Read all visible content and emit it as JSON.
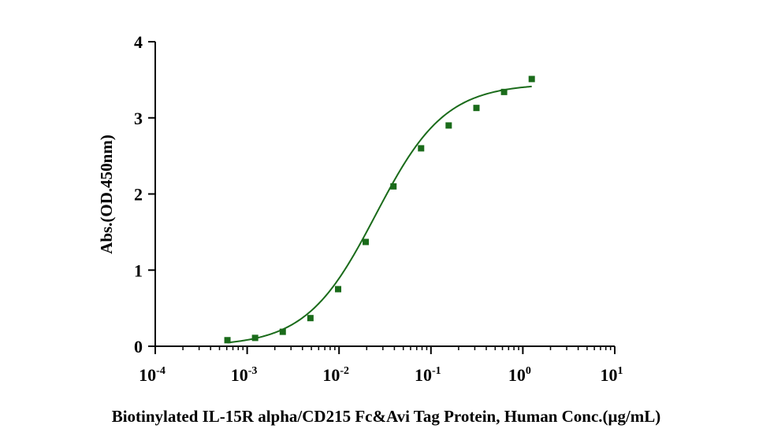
{
  "chart_data": {
    "type": "scatter",
    "title": "",
    "xlabel": "Biotinylated IL-15R alpha/CD215 Fc&Avi Tag Protein, Human Conc.(μg/mL)",
    "ylabel": "Abs.(OD.450nm)",
    "x_scale": "log",
    "xlim": [
      0.0001,
      10
    ],
    "ylim": [
      0,
      4
    ],
    "grid": false,
    "legend": "none",
    "x_ticks": [
      {
        "base": "10",
        "exp": "-4",
        "value": 0.0001
      },
      {
        "base": "10",
        "exp": "-3",
        "value": 0.001
      },
      {
        "base": "10",
        "exp": "-2",
        "value": 0.01
      },
      {
        "base": "10",
        "exp": "-1",
        "value": 0.1
      },
      {
        "base": "10",
        "exp": "0",
        "value": 1
      },
      {
        "base": "10",
        "exp": "1",
        "value": 10
      }
    ],
    "y_ticks": [
      {
        "label": "0",
        "value": 0
      },
      {
        "label": "1",
        "value": 1
      },
      {
        "label": "2",
        "value": 2
      },
      {
        "label": "3",
        "value": 3
      },
      {
        "label": "4",
        "value": 4
      }
    ],
    "series": [
      {
        "color": "#1a6b1a",
        "marker": "square",
        "fit": "4PL",
        "x": [
          0.00061,
          0.00122,
          0.00244,
          0.00488,
          0.00977,
          0.0195,
          0.0391,
          0.0781,
          0.156,
          0.3125,
          0.625,
          1.25
        ],
        "y": [
          0.08,
          0.11,
          0.19,
          0.37,
          0.75,
          1.37,
          2.1,
          2.6,
          2.9,
          3.13,
          3.34,
          3.51
        ]
      }
    ],
    "fit_curve": {
      "bottom": 0.0,
      "top": 3.45,
      "ec50": 0.025,
      "hill": 1.15,
      "x_range": [
        0.00061,
        1.25
      ]
    }
  }
}
